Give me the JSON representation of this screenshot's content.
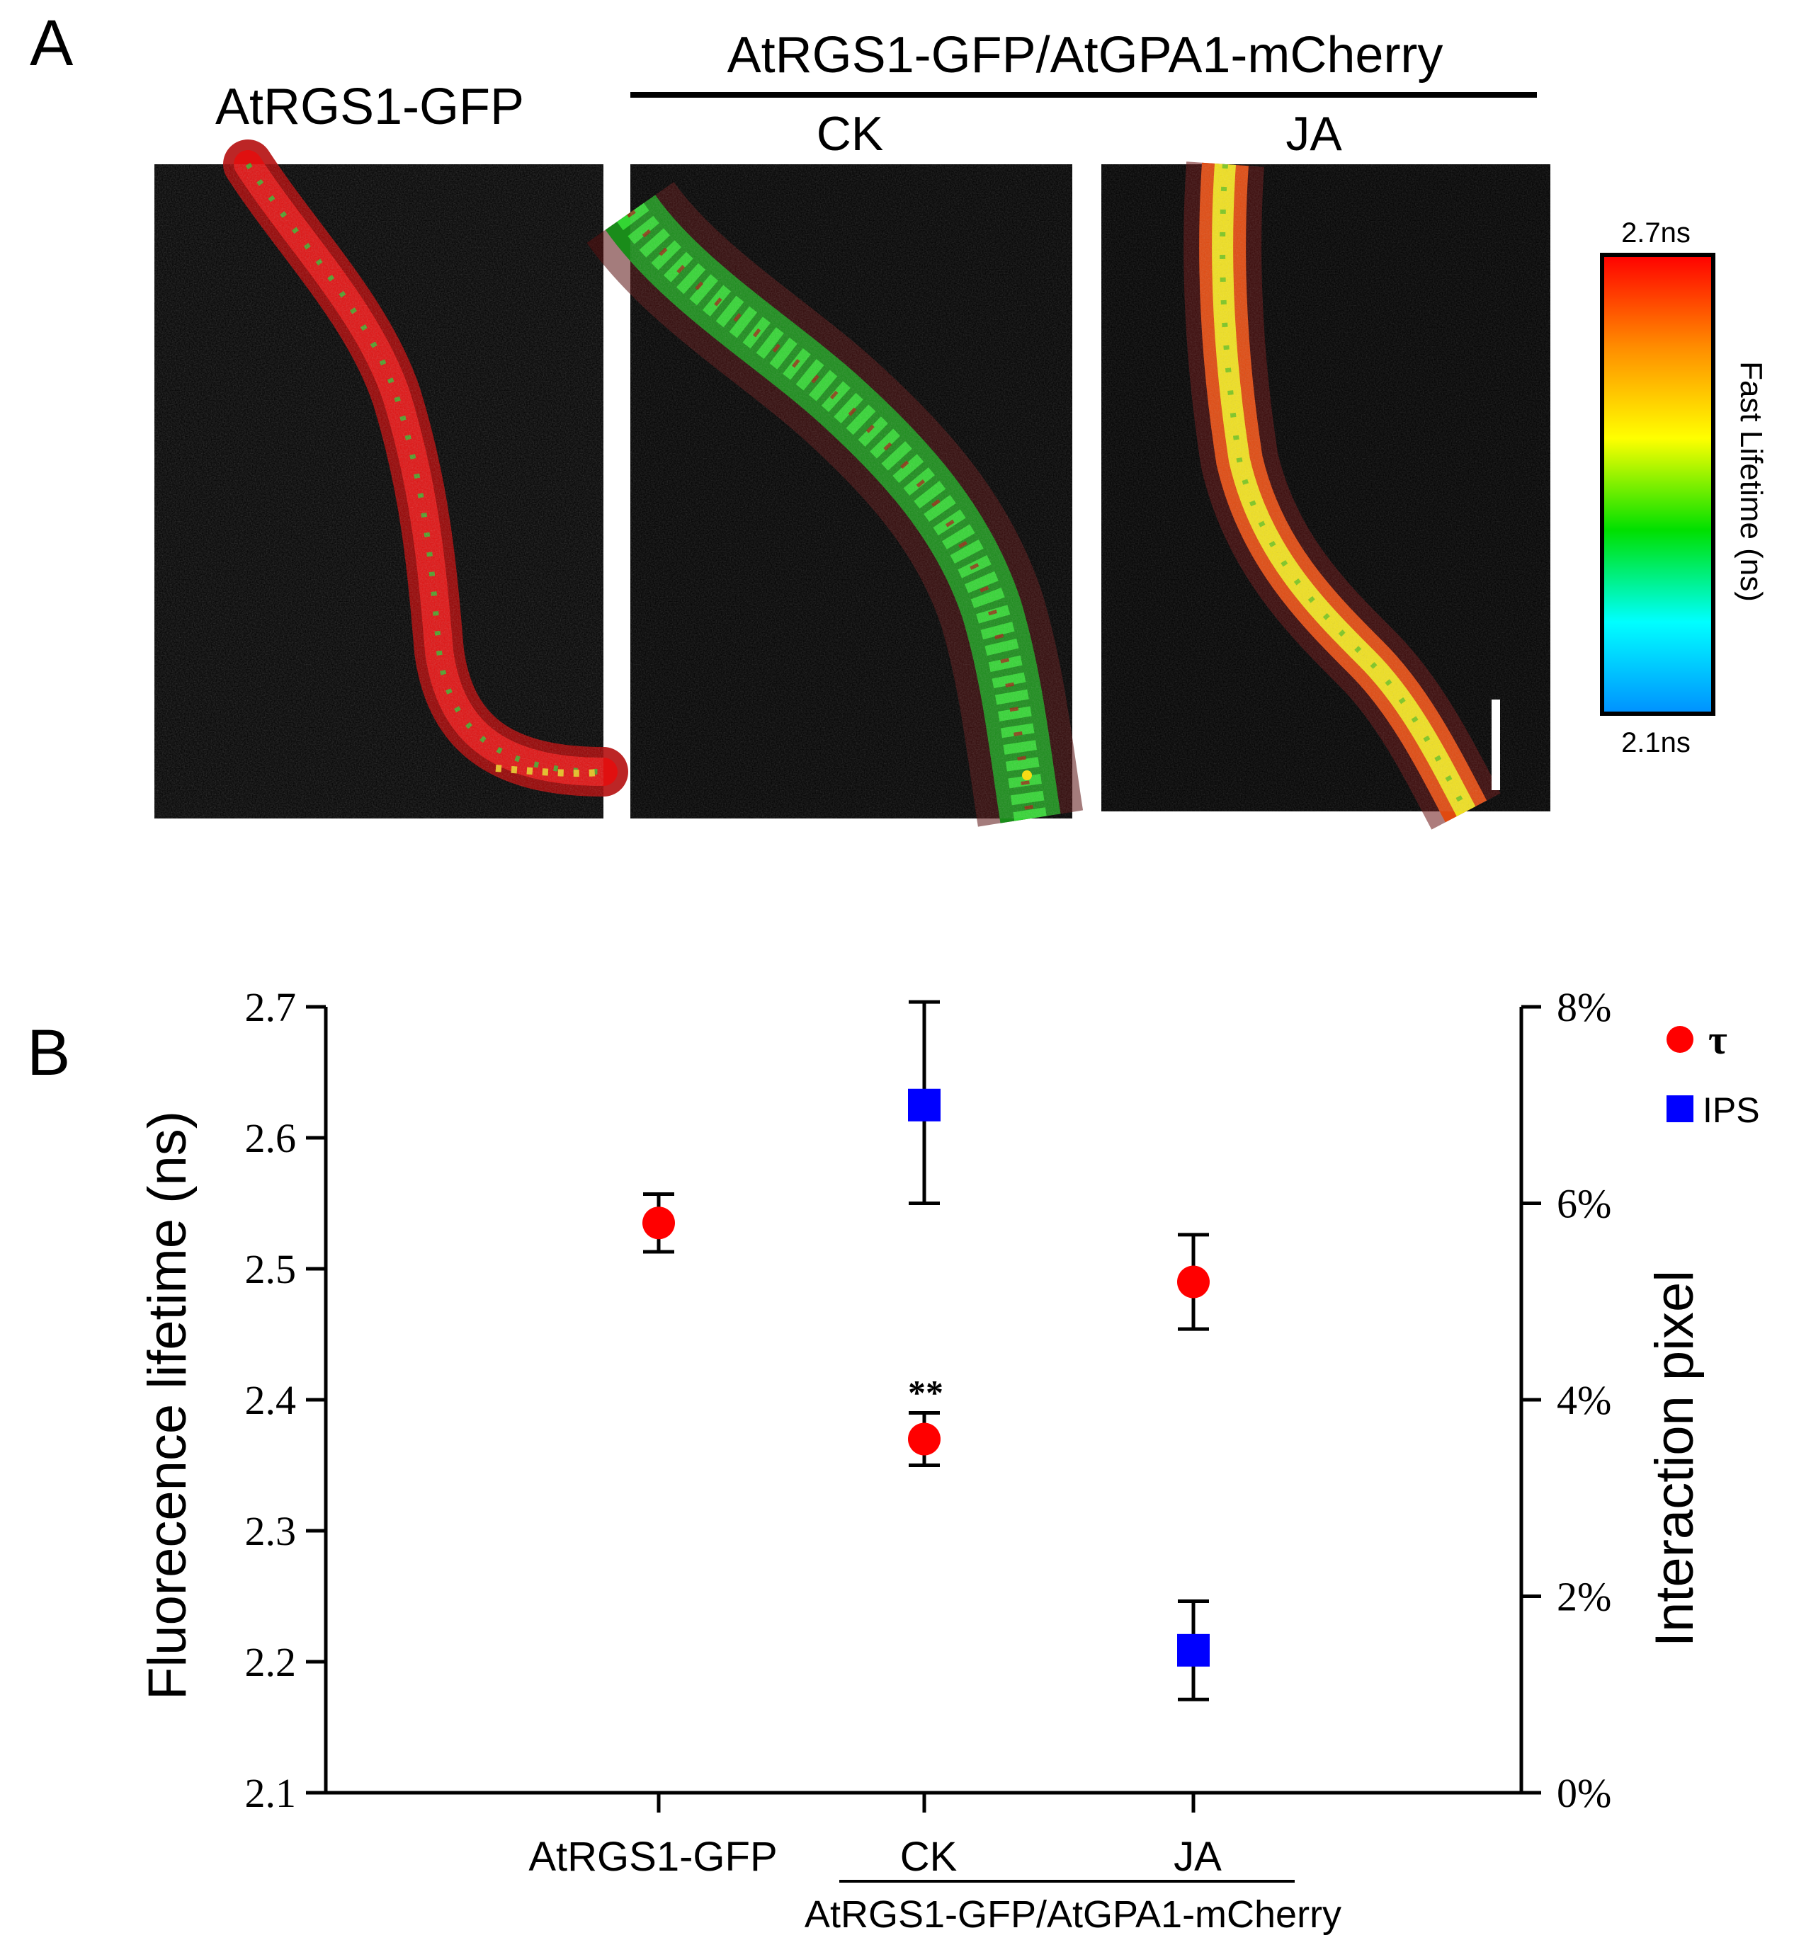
{
  "panelA": {
    "label": "A",
    "group_title": "AtRGS1-GFP/AtGPA1-mCherry",
    "panels": [
      {
        "title": "AtRGS1-GFP"
      },
      {
        "title": "CK"
      },
      {
        "title": "JA"
      }
    ],
    "colorbar": {
      "max_label": "2.7ns",
      "min_label": "2.1ns",
      "axis_label": "Fast Lifetime (ns)",
      "colors": [
        "#ff0000",
        "#ff8c00",
        "#ffff00",
        "#00e000",
        "#00ffff",
        "#0090ff"
      ]
    }
  },
  "panelB": {
    "label": "B",
    "chart_data": {
      "type": "scatter",
      "categories": [
        "AtRGS1-GFP",
        "CK",
        "JA"
      ],
      "group_label": "AtRGS1-GFP/AtGPA1-mCherry",
      "ylabel": "Fluorecence lifetime (ns)",
      "ylabel_right": "Interaction pixel",
      "ylim": [
        2.1,
        2.7
      ],
      "yticks": [
        "2.1",
        "2.2",
        "2.3",
        "2.4",
        "2.5",
        "2.6",
        "2.7"
      ],
      "ylim_right": [
        0,
        8
      ],
      "yticks_right": [
        "0%",
        "2%",
        "4%",
        "6%",
        "8%"
      ],
      "legend_position": "top-right",
      "series": [
        {
          "name": "τ",
          "axis": "left",
          "marker": "circle",
          "color": "#ff0000",
          "points": [
            {
              "category": "AtRGS1-GFP",
              "value": 2.535,
              "low": 2.513,
              "high": 2.557,
              "annotation": ""
            },
            {
              "category": "CK",
              "value": 2.37,
              "low": 2.35,
              "high": 2.39,
              "annotation": "**"
            },
            {
              "category": "JA",
              "value": 2.49,
              "low": 2.454,
              "high": 2.526,
              "annotation": ""
            }
          ]
        },
        {
          "name": "IPS",
          "axis": "right",
          "marker": "square",
          "color": "#0000ff",
          "points": [
            {
              "category": "CK",
              "value": 7.0,
              "low": 6.0,
              "high": 8.05,
              "annotation": ""
            },
            {
              "category": "JA",
              "value": 1.45,
              "low": 0.95,
              "high": 1.95,
              "annotation": ""
            }
          ]
        }
      ]
    }
  }
}
